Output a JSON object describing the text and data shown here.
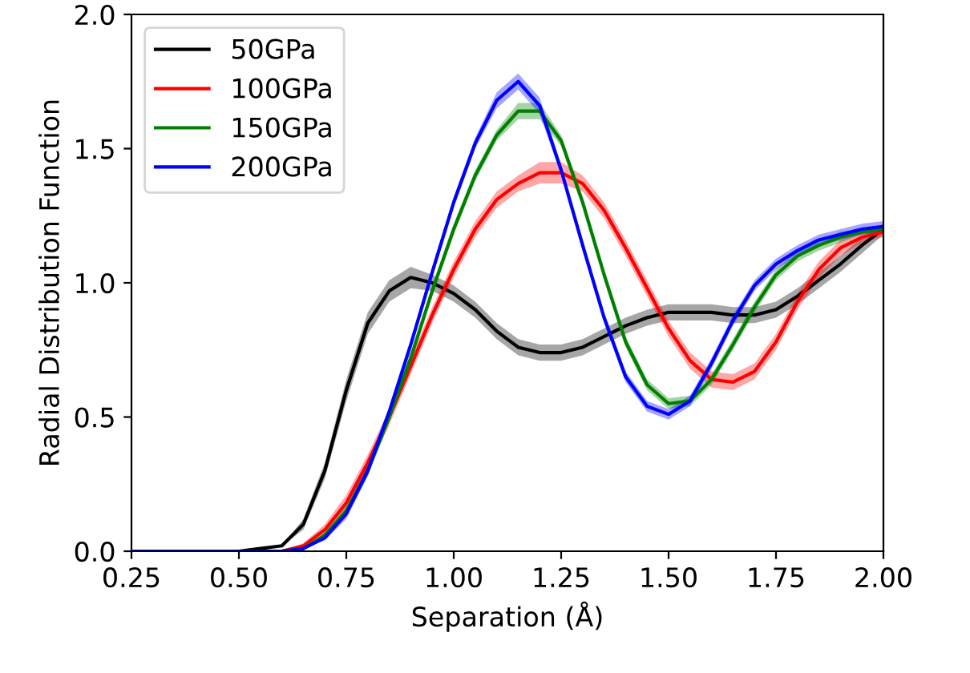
{
  "chart_data": {
    "type": "line",
    "xlabel": "Separation (Å)",
    "ylabel": "Radial Distribution Function",
    "x": [
      0.25,
      0.5,
      0.55,
      0.6,
      0.65,
      0.7,
      0.75,
      0.8,
      0.85,
      0.9,
      0.95,
      1.0,
      1.05,
      1.1,
      1.15,
      1.2,
      1.25,
      1.3,
      1.35,
      1.4,
      1.45,
      1.5,
      1.55,
      1.6,
      1.65,
      1.7,
      1.75,
      1.8,
      1.85,
      1.9,
      1.95,
      2.0
    ],
    "series": [
      {
        "name": "50GPa",
        "color": "#000000",
        "values": [
          0,
          0,
          0.01,
          0.02,
          0.1,
          0.3,
          0.6,
          0.85,
          0.97,
          1.02,
          1.0,
          0.96,
          0.9,
          0.82,
          0.76,
          0.74,
          0.74,
          0.76,
          0.8,
          0.84,
          0.87,
          0.89,
          0.89,
          0.89,
          0.88,
          0.88,
          0.9,
          0.95,
          1.01,
          1.07,
          1.14,
          1.2
        ],
        "lower": [
          0,
          0,
          0.01,
          0.02,
          0.08,
          0.27,
          0.56,
          0.81,
          0.93,
          0.98,
          0.97,
          0.93,
          0.87,
          0.79,
          0.73,
          0.71,
          0.71,
          0.73,
          0.77,
          0.81,
          0.84,
          0.86,
          0.86,
          0.86,
          0.85,
          0.85,
          0.87,
          0.92,
          0.98,
          1.04,
          1.11,
          1.18
        ],
        "upper": [
          0,
          0,
          0.01,
          0.02,
          0.12,
          0.33,
          0.64,
          0.89,
          1.01,
          1.06,
          1.03,
          0.99,
          0.93,
          0.85,
          0.79,
          0.77,
          0.77,
          0.79,
          0.83,
          0.87,
          0.9,
          0.92,
          0.92,
          0.92,
          0.91,
          0.91,
          0.93,
          0.98,
          1.04,
          1.1,
          1.17,
          1.22
        ]
      },
      {
        "name": "100GPa",
        "color": "#ff0000",
        "values": [
          null,
          null,
          0,
          0,
          0.02,
          0.08,
          0.18,
          0.33,
          0.5,
          0.69,
          0.88,
          1.05,
          1.2,
          1.31,
          1.37,
          1.41,
          1.41,
          1.37,
          1.27,
          1.13,
          0.98,
          0.83,
          0.71,
          0.64,
          0.63,
          0.67,
          0.78,
          0.93,
          1.05,
          1.13,
          1.17,
          1.19
        ],
        "lower": [
          0,
          0,
          0,
          0,
          0.01,
          0.06,
          0.15,
          0.3,
          0.47,
          0.66,
          0.85,
          1.02,
          1.17,
          1.28,
          1.34,
          1.37,
          1.37,
          1.34,
          1.24,
          1.1,
          0.95,
          0.8,
          0.68,
          0.61,
          0.6,
          0.64,
          0.75,
          0.9,
          1.02,
          1.1,
          1.15,
          1.17
        ],
        "upper": [
          0,
          0,
          0,
          0,
          0.03,
          0.1,
          0.21,
          0.36,
          0.53,
          0.72,
          0.91,
          1.08,
          1.23,
          1.34,
          1.4,
          1.45,
          1.45,
          1.4,
          1.3,
          1.16,
          1.01,
          0.86,
          0.74,
          0.67,
          0.66,
          0.7,
          0.81,
          0.96,
          1.08,
          1.16,
          1.19,
          1.21
        ]
      },
      {
        "name": "150GPa",
        "color": "#008000",
        "values": [
          null,
          null,
          null,
          0,
          0.01,
          0.06,
          0.15,
          0.3,
          0.5,
          0.72,
          0.97,
          1.2,
          1.4,
          1.55,
          1.64,
          1.64,
          1.53,
          1.3,
          1.03,
          0.78,
          0.62,
          0.55,
          0.56,
          0.64,
          0.77,
          0.91,
          1.03,
          1.1,
          1.14,
          1.17,
          1.19,
          1.2
        ],
        "lower": [
          0,
          0,
          0,
          0,
          0.01,
          0.05,
          0.13,
          0.28,
          0.48,
          0.7,
          0.95,
          1.18,
          1.38,
          1.53,
          1.61,
          1.61,
          1.51,
          1.28,
          1.01,
          0.76,
          0.6,
          0.53,
          0.54,
          0.62,
          0.75,
          0.89,
          1.01,
          1.08,
          1.12,
          1.15,
          1.18,
          1.19
        ],
        "upper": [
          0,
          0,
          0,
          0,
          0.01,
          0.07,
          0.17,
          0.32,
          0.52,
          0.74,
          0.99,
          1.22,
          1.42,
          1.57,
          1.67,
          1.67,
          1.55,
          1.32,
          1.05,
          0.8,
          0.64,
          0.57,
          0.58,
          0.66,
          0.79,
          0.93,
          1.05,
          1.12,
          1.16,
          1.19,
          1.2,
          1.21
        ]
      },
      {
        "name": "200GPa",
        "color": "#0000ff",
        "values": [
          0,
          0,
          0,
          0,
          0.01,
          0.05,
          0.14,
          0.3,
          0.52,
          0.77,
          1.04,
          1.3,
          1.52,
          1.68,
          1.75,
          1.66,
          1.42,
          1.14,
          0.87,
          0.65,
          0.54,
          0.51,
          0.56,
          0.7,
          0.86,
          0.99,
          1.07,
          1.12,
          1.16,
          1.18,
          1.2,
          1.21
        ],
        "lower": [
          0,
          0,
          0,
          0,
          0.01,
          0.04,
          0.12,
          0.28,
          0.5,
          0.75,
          1.02,
          1.28,
          1.5,
          1.65,
          1.72,
          1.63,
          1.4,
          1.12,
          0.85,
          0.63,
          0.52,
          0.49,
          0.54,
          0.68,
          0.84,
          0.97,
          1.05,
          1.1,
          1.14,
          1.16,
          1.18,
          1.19
        ],
        "upper": [
          0,
          0,
          0,
          0,
          0.01,
          0.06,
          0.16,
          0.32,
          0.54,
          0.79,
          1.06,
          1.32,
          1.54,
          1.71,
          1.78,
          1.69,
          1.44,
          1.16,
          0.89,
          0.67,
          0.56,
          0.53,
          0.58,
          0.72,
          0.88,
          1.01,
          1.09,
          1.14,
          1.18,
          1.2,
          1.22,
          1.23
        ]
      }
    ],
    "xlim": [
      0.25,
      2.0
    ],
    "xticks": [
      {
        "value": 0.25,
        "label": "0.25"
      },
      {
        "value": 0.5,
        "label": "0.50"
      },
      {
        "value": 0.75,
        "label": "0.75"
      },
      {
        "value": 1.0,
        "label": "1.00"
      },
      {
        "value": 1.25,
        "label": "1.25"
      },
      {
        "value": 1.5,
        "label": "1.50"
      },
      {
        "value": 1.75,
        "label": "1.75"
      },
      {
        "value": 2.0,
        "label": "2.00"
      }
    ],
    "ylim": [
      0,
      2.0
    ],
    "yticks": [
      {
        "value": 0,
        "label": "0.0"
      },
      {
        "value": 0.5,
        "label": "0.5"
      },
      {
        "value": 1.0,
        "label": "1.0"
      },
      {
        "value": 1.5,
        "label": "1.5"
      },
      {
        "value": 2.0,
        "label": "2.0"
      }
    ],
    "legend": "top left",
    "grid": false
  }
}
